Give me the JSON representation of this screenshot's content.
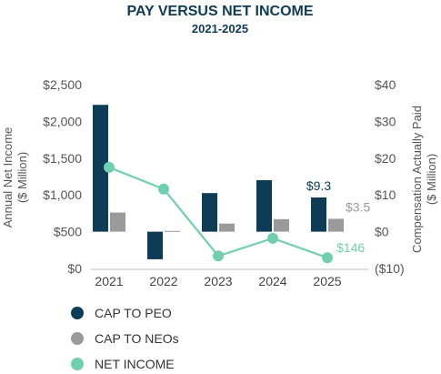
{
  "colors": {
    "title": "#0e3b55",
    "cap_peo": "#0e3b55",
    "cap_neos": "#9a9a9a",
    "net_income": "#6fcfb0",
    "axis_text": "#555555",
    "baseline": "#bbbbbb"
  },
  "chart_data": {
    "type": "bar",
    "title": "PAY VERSUS NET INCOME",
    "subtitle": "2021-2025",
    "categories": [
      "2021",
      "2022",
      "2023",
      "2024",
      "2025"
    ],
    "ylabel_left": "Annual Net Income\n($ Million)",
    "ylabel_right": "Compensation Actually Paid\n($ Million)",
    "ylim_left": [
      0,
      2500
    ],
    "ylim_right": [
      -10,
      40
    ],
    "left_ticks": [
      "$0",
      "$500",
      "$1,000",
      "$1,500",
      "$2,000",
      "$2,500"
    ],
    "right_ticks": [
      "($10)",
      "$0",
      "$10",
      "$20",
      "$30",
      "$40"
    ],
    "grid": false,
    "legend_position": "bottom-left",
    "series": [
      {
        "name": "CAP TO PEO",
        "axis": "right",
        "kind": "bar",
        "values": [
          34.5,
          -7.5,
          10.5,
          14,
          9.3
        ]
      },
      {
        "name": "CAP TO NEOs",
        "axis": "right",
        "kind": "bar",
        "values": [
          5.2,
          0.2,
          2.2,
          3.4,
          3.5
        ]
      },
      {
        "name": "NET INCOME",
        "axis": "left",
        "kind": "line",
        "values": [
          1375,
          1080,
          170,
          410,
          146
        ]
      }
    ],
    "annotations": [
      {
        "series": 0,
        "index": 4,
        "text": "$9.3"
      },
      {
        "series": 1,
        "index": 4,
        "text": "$3.5"
      },
      {
        "series": 2,
        "index": 4,
        "text": "$146"
      }
    ]
  }
}
